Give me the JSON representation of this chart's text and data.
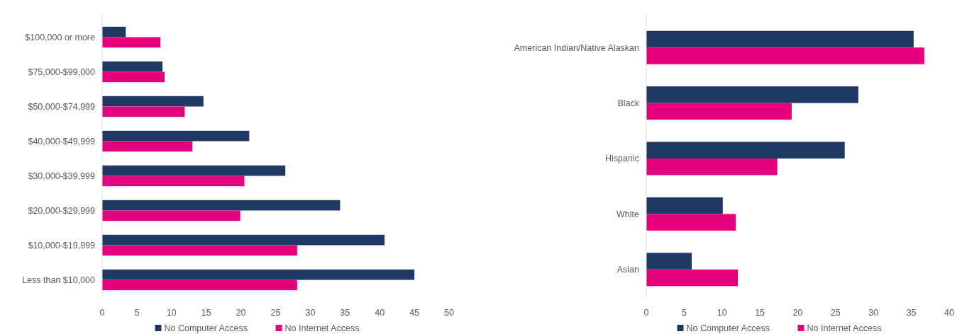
{
  "chart_data": [
    {
      "type": "bar",
      "orientation": "horizontal",
      "categories": [
        "$100,000 or more",
        "$75,000-$99,000",
        "$50,000-$74,999",
        "$40,000-$49,999",
        "$30,000-$39,999",
        "$20,000-$29,999",
        "$10,000-$19,999",
        "Less than $10,000"
      ],
      "series": [
        {
          "name": "No Computer Access",
          "color": "#1f3864",
          "values": [
            3.4,
            8.7,
            14.6,
            21.2,
            26.4,
            34.3,
            40.7,
            45.0
          ]
        },
        {
          "name": "No Internet Access",
          "color": "#e6007e",
          "values": [
            8.4,
            9.0,
            11.9,
            13.0,
            20.5,
            19.9,
            28.1,
            28.1
          ]
        }
      ],
      "xlim": [
        0,
        50
      ],
      "xticks": [
        0,
        5,
        10,
        15,
        20,
        25,
        30,
        35,
        40,
        45,
        50
      ],
      "legend": "bottom",
      "grid": false
    },
    {
      "type": "bar",
      "orientation": "horizontal",
      "categories": [
        "American Indian/Native Alaskan",
        "Black",
        "Hispanic",
        "White",
        "Asian"
      ],
      "series": [
        {
          "name": "No Computer Access",
          "color": "#1f3864",
          "values": [
            35.3,
            28.0,
            26.2,
            10.1,
            6.0
          ]
        },
        {
          "name": "No Internet Access",
          "color": "#e6007e",
          "values": [
            36.7,
            19.2,
            17.3,
            11.8,
            12.1
          ]
        }
      ],
      "xlim": [
        0,
        40
      ],
      "xticks": [
        0,
        5,
        10,
        15,
        20,
        25,
        30,
        35,
        40
      ],
      "legend": "bottom",
      "grid": false
    }
  ]
}
